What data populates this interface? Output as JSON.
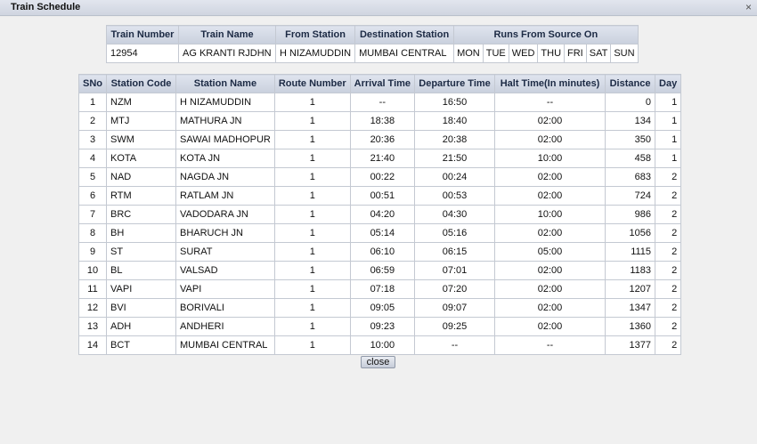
{
  "window": {
    "title": "Train Schedule",
    "close_glyph": "×"
  },
  "train_info": {
    "headers": {
      "train_number": "Train Number",
      "train_name": "Train Name",
      "from_station": "From Station",
      "destination_station": "Destination Station",
      "runs_from_source_on": "Runs From Source On"
    },
    "train_number": "12954",
    "train_name": "AG KRANTI RJDHN",
    "from_station": "H NIZAMUDDIN",
    "destination_station": "MUMBAI CENTRAL",
    "days": [
      "MON",
      "TUE",
      "WED",
      "THU",
      "FRI",
      "SAT",
      "SUN"
    ]
  },
  "schedule": {
    "headers": [
      "SNo",
      "Station Code",
      "Station Name",
      "Route Number",
      "Arrival Time",
      "Departure Time",
      "Halt Time(In minutes)",
      "Distance",
      "Day"
    ],
    "rows": [
      [
        "1",
        "NZM",
        "H NIZAMUDDIN",
        "1",
        "--",
        "16:50",
        "--",
        "0",
        "1"
      ],
      [
        "2",
        "MTJ",
        "MATHURA JN",
        "1",
        "18:38",
        "18:40",
        "02:00",
        "134",
        "1"
      ],
      [
        "3",
        "SWM",
        "SAWAI MADHOPUR",
        "1",
        "20:36",
        "20:38",
        "02:00",
        "350",
        "1"
      ],
      [
        "4",
        "KOTA",
        "KOTA JN",
        "1",
        "21:40",
        "21:50",
        "10:00",
        "458",
        "1"
      ],
      [
        "5",
        "NAD",
        "NAGDA JN",
        "1",
        "00:22",
        "00:24",
        "02:00",
        "683",
        "2"
      ],
      [
        "6",
        "RTM",
        "RATLAM JN",
        "1",
        "00:51",
        "00:53",
        "02:00",
        "724",
        "2"
      ],
      [
        "7",
        "BRC",
        "VADODARA JN",
        "1",
        "04:20",
        "04:30",
        "10:00",
        "986",
        "2"
      ],
      [
        "8",
        "BH",
        "BHARUCH JN",
        "1",
        "05:14",
        "05:16",
        "02:00",
        "1056",
        "2"
      ],
      [
        "9",
        "ST",
        "SURAT",
        "1",
        "06:10",
        "06:15",
        "05:00",
        "1115",
        "2"
      ],
      [
        "10",
        "BL",
        "VALSAD",
        "1",
        "06:59",
        "07:01",
        "02:00",
        "1183",
        "2"
      ],
      [
        "11",
        "VAPI",
        "VAPI",
        "1",
        "07:18",
        "07:20",
        "02:00",
        "1207",
        "2"
      ],
      [
        "12",
        "BVI",
        "BORIVALI",
        "1",
        "09:05",
        "09:07",
        "02:00",
        "1347",
        "2"
      ],
      [
        "13",
        "ADH",
        "ANDHERI",
        "1",
        "09:23",
        "09:25",
        "02:00",
        "1360",
        "2"
      ],
      [
        "14",
        "BCT",
        "MUMBAI CENTRAL",
        "1",
        "10:00",
        "--",
        "--",
        "1377",
        "2"
      ]
    ]
  },
  "close_button_label": "close"
}
